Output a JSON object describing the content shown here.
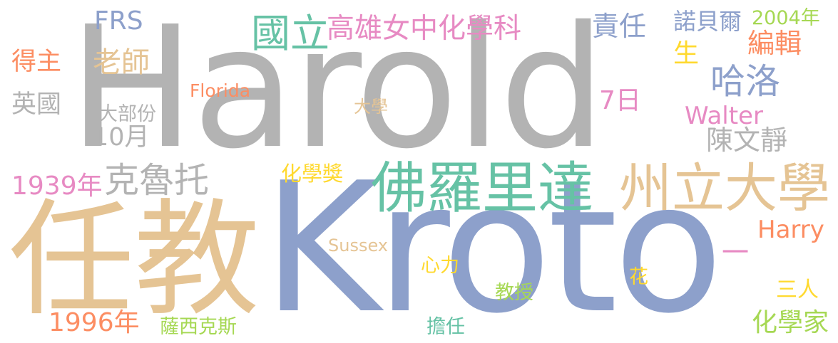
{
  "palette": {
    "gray": "#b3b3b3",
    "blue": "#8da0cb",
    "tan": "#e5c494",
    "green": "#66c2a5",
    "orange": "#fc8d62",
    "pink": "#e78ac3",
    "lime": "#a6d854",
    "yellow": "#ffd92f"
  },
  "words": [
    {
      "id": "harold",
      "text": "Harold",
      "color": "gray"
    },
    {
      "id": "kroto",
      "text": "Kroto",
      "color": "blue"
    },
    {
      "id": "renjiao",
      "text": "任教",
      "color": "tan"
    },
    {
      "id": "foluolida",
      "text": "佛羅里達",
      "color": "green"
    },
    {
      "id": "zhoulidaxue",
      "text": "州立大學",
      "color": "tan"
    },
    {
      "id": "guoli",
      "text": "國立",
      "color": "green"
    },
    {
      "id": "gaoxiongnuzhong",
      "text": "高雄女中化學科",
      "color": "pink"
    },
    {
      "id": "keluotuo",
      "text": "克魯托",
      "color": "gray"
    },
    {
      "id": "haluo",
      "text": "哈洛",
      "color": "blue"
    },
    {
      "id": "frs",
      "text": "FRS",
      "color": "blue"
    },
    {
      "id": "zeren",
      "text": "責任",
      "color": "blue"
    },
    {
      "id": "nuobeier",
      "text": "諾貝爾",
      "color": "blue"
    },
    {
      "id": "y2004",
      "text": "2004年",
      "color": "lime"
    },
    {
      "id": "bianji",
      "text": "編輯",
      "color": "orange"
    },
    {
      "id": "sheng",
      "text": "生",
      "color": "yellow"
    },
    {
      "id": "laoshi",
      "text": "老師",
      "color": "tan"
    },
    {
      "id": "dezhu",
      "text": "得主",
      "color": "orange"
    },
    {
      "id": "yingguo",
      "text": "英國",
      "color": "gray"
    },
    {
      "id": "florida",
      "text": "Florida",
      "color": "orange"
    },
    {
      "id": "dabufen",
      "text": "大部份",
      "color": "gray"
    },
    {
      "id": "yue10",
      "text": "10月",
      "color": "gray"
    },
    {
      "id": "daxue",
      "text": "大學",
      "color": "tan"
    },
    {
      "id": "ri7",
      "text": "7日",
      "color": "pink"
    },
    {
      "id": "walter",
      "text": "Walter",
      "color": "pink"
    },
    {
      "id": "chenwenjing",
      "text": "陳文靜",
      "color": "gray"
    },
    {
      "id": "y1939",
      "text": "1939年",
      "color": "pink"
    },
    {
      "id": "huaxuejiang",
      "text": "化學獎",
      "color": "yellow"
    },
    {
      "id": "harry",
      "text": "Harry",
      "color": "orange"
    },
    {
      "id": "sussex",
      "text": "Sussex",
      "color": "tan"
    },
    {
      "id": "xinli",
      "text": "心力",
      "color": "yellow"
    },
    {
      "id": "yi",
      "text": "一",
      "color": "pink"
    },
    {
      "id": "hua",
      "text": "花",
      "color": "yellow"
    },
    {
      "id": "jiaoshou",
      "text": "教授",
      "color": "lime"
    },
    {
      "id": "sanren",
      "text": "三人",
      "color": "yellow"
    },
    {
      "id": "y1996",
      "text": "1996年",
      "color": "orange"
    },
    {
      "id": "saxikesi",
      "text": "薩西克斯",
      "color": "lime"
    },
    {
      "id": "danren",
      "text": "擔任",
      "color": "green"
    },
    {
      "id": "huaxuejia",
      "text": "化學家",
      "color": "lime"
    }
  ]
}
